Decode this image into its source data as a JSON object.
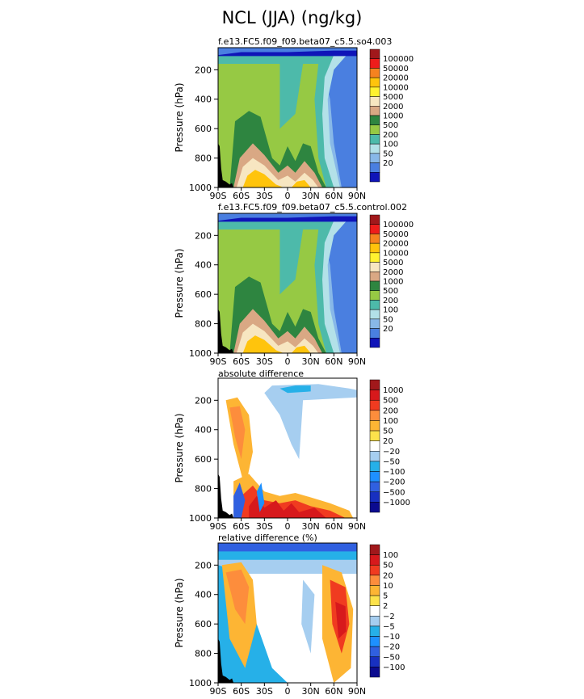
{
  "title": "NCL (JJA) (ng/kg)",
  "chart_data": [
    {
      "type": "heatmap",
      "title": "f.e13.FC5.f09_f09.beta07_c5.5.so4.003",
      "ylabel": "Pressure (hPa)",
      "xlabel": "",
      "xticks": [
        "90S",
        "60S",
        "30S",
        "0",
        "30N",
        "60N",
        "90N"
      ],
      "yticks": [
        "200",
        "400",
        "600",
        "800",
        "1000"
      ],
      "ylim": [
        1000,
        50
      ],
      "colorbar": {
        "labels": [
          "100000",
          "50000",
          "20000",
          "10000",
          "5000",
          "2000",
          "1000",
          "500",
          "200",
          "100",
          "50",
          "20"
        ],
        "colors": [
          "#a1181b",
          "#ee1d1b",
          "#f5821f",
          "#ffc40c",
          "#fff230",
          "#f7e6c1",
          "#d9a884",
          "#2e8540",
          "#96c944",
          "#4dbaaa",
          "#b3e1e8",
          "#88b8e8",
          "#4a7fe0",
          "#0f14b8"
        ]
      }
    },
    {
      "type": "heatmap",
      "title": "f.e13.FC5.f09_f09.beta07_c5.5.control.002",
      "ylabel": "Pressure (hPa)",
      "xlabel": "",
      "xticks": [
        "90S",
        "60S",
        "30S",
        "0",
        "30N",
        "60N",
        "90N"
      ],
      "yticks": [
        "200",
        "400",
        "600",
        "800",
        "1000"
      ],
      "ylim": [
        1000,
        50
      ],
      "colorbar": {
        "labels": [
          "100000",
          "50000",
          "20000",
          "10000",
          "5000",
          "2000",
          "1000",
          "500",
          "200",
          "100",
          "50",
          "20"
        ],
        "colors": [
          "#a1181b",
          "#ee1d1b",
          "#f5821f",
          "#ffc40c",
          "#fff230",
          "#f7e6c1",
          "#d9a884",
          "#2e8540",
          "#96c944",
          "#4dbaaa",
          "#b3e1e8",
          "#88b8e8",
          "#4a7fe0",
          "#0f14b8"
        ]
      }
    },
    {
      "type": "heatmap",
      "title": "absolute difference",
      "ylabel": "Pressure (hPa)",
      "xlabel": "",
      "xticks": [
        "90S",
        "60S",
        "30S",
        "0",
        "30N",
        "60N",
        "90N"
      ],
      "yticks": [
        "200",
        "400",
        "600",
        "800",
        "1000"
      ],
      "ylim": [
        1000,
        50
      ],
      "colorbar": {
        "labels": [
          "1000",
          "500",
          "200",
          "100",
          "50",
          "20",
          "−20",
          "−50",
          "−100",
          "−200",
          "−500",
          "−1000"
        ],
        "colors": [
          "#a1181b",
          "#d7191c",
          "#f03b20",
          "#fd8d3c",
          "#fdb534",
          "#fde24b",
          "#ffffff",
          "#a6cef0",
          "#26b0e8",
          "#1e90ff",
          "#3060e0",
          "#1830c0",
          "#0b0b8f"
        ]
      }
    },
    {
      "type": "heatmap",
      "title": "relative difference (%)",
      "ylabel": "Pressure (hPa)",
      "xlabel": "",
      "xticks": [
        "90S",
        "60S",
        "30S",
        "0",
        "30N",
        "60N",
        "90N"
      ],
      "yticks": [
        "200",
        "400",
        "600",
        "800",
        "1000"
      ],
      "ylim": [
        1000,
        50
      ],
      "colorbar": {
        "labels": [
          "100",
          "50",
          "20",
          "10",
          "5",
          "2",
          "−2",
          "−5",
          "−10",
          "−20",
          "−50",
          "−100"
        ],
        "colors": [
          "#a1181b",
          "#d7191c",
          "#f03b20",
          "#fd8d3c",
          "#fdb534",
          "#fde24b",
          "#ffffff",
          "#a6cef0",
          "#26b0e8",
          "#1e90ff",
          "#3060e0",
          "#1830c0",
          "#0b0b8f"
        ]
      }
    }
  ]
}
